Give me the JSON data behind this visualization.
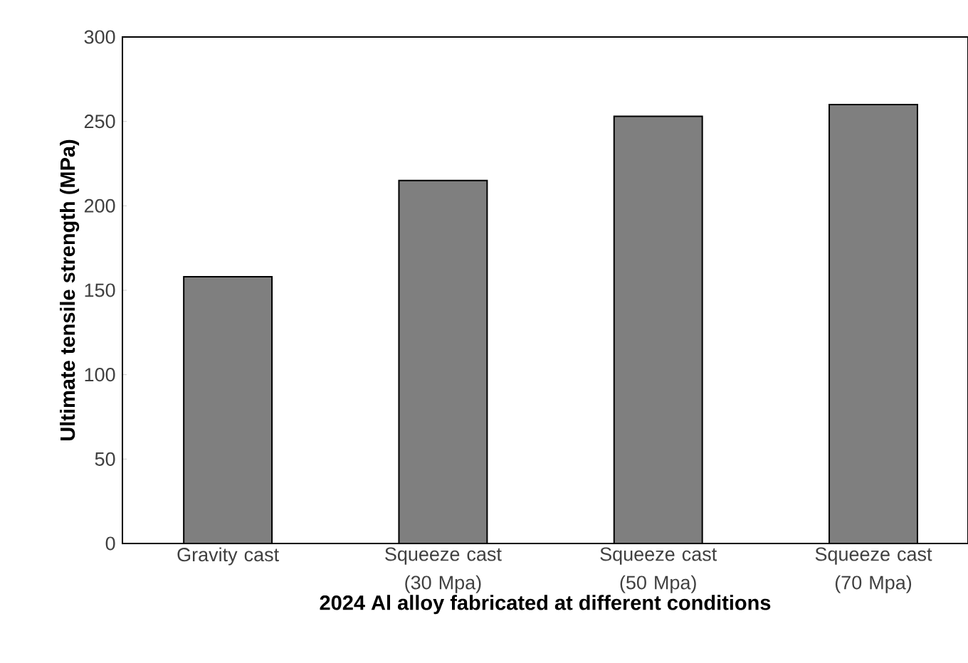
{
  "chart_data": {
    "type": "bar",
    "xlabel": "2024 Al alloy fabricated at different conditions",
    "ylabel": "Ultimate tensile strength (MPa)",
    "categories": [
      "Gravity cast",
      "Squeeze cast (30 Mpa)",
      "Squeeze cast (50 Mpa)",
      "Squeeze cast (70 Mpa)"
    ],
    "values": [
      158,
      215,
      253,
      260
    ],
    "color": "#7f7f7f",
    "ylim": [
      0,
      300
    ],
    "yticks": [
      0,
      50,
      100,
      150,
      200,
      250,
      300
    ],
    "grid": false
  }
}
